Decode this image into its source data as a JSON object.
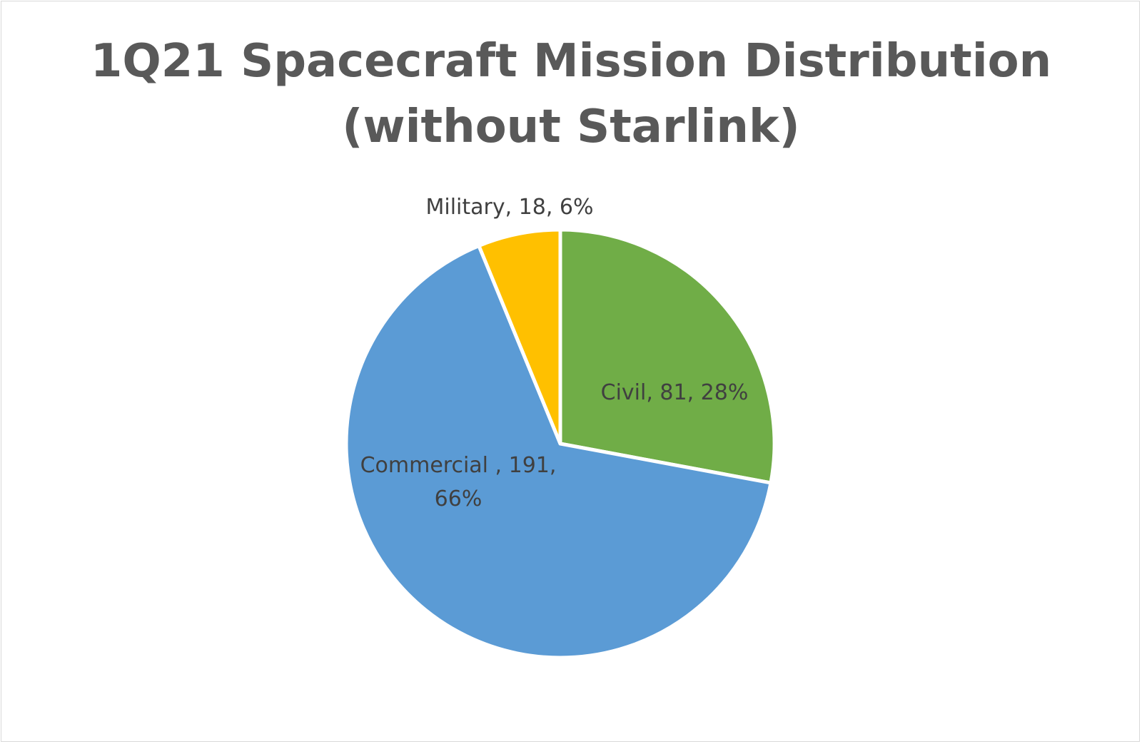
{
  "chart_data": {
    "type": "pie",
    "title_lines": [
      "1Q21 Spacecraft Mission Distribution",
      "(without Starlink)"
    ],
    "slices": [
      {
        "category": "Civil",
        "value": 81,
        "percent": "28%",
        "color": "#70AD47",
        "label_lines": [
          "Civil, 81, 28%"
        ]
      },
      {
        "category": "Commercial ",
        "value": 191,
        "percent": "66%",
        "color": "#5B9BD5",
        "label_lines": [
          "Commercial , 191,",
          "66%"
        ]
      },
      {
        "category": "Military",
        "value": 18,
        "percent": "6%",
        "color": "#FFC000",
        "label_lines": [
          "Military, 18, 6%"
        ]
      }
    ]
  }
}
